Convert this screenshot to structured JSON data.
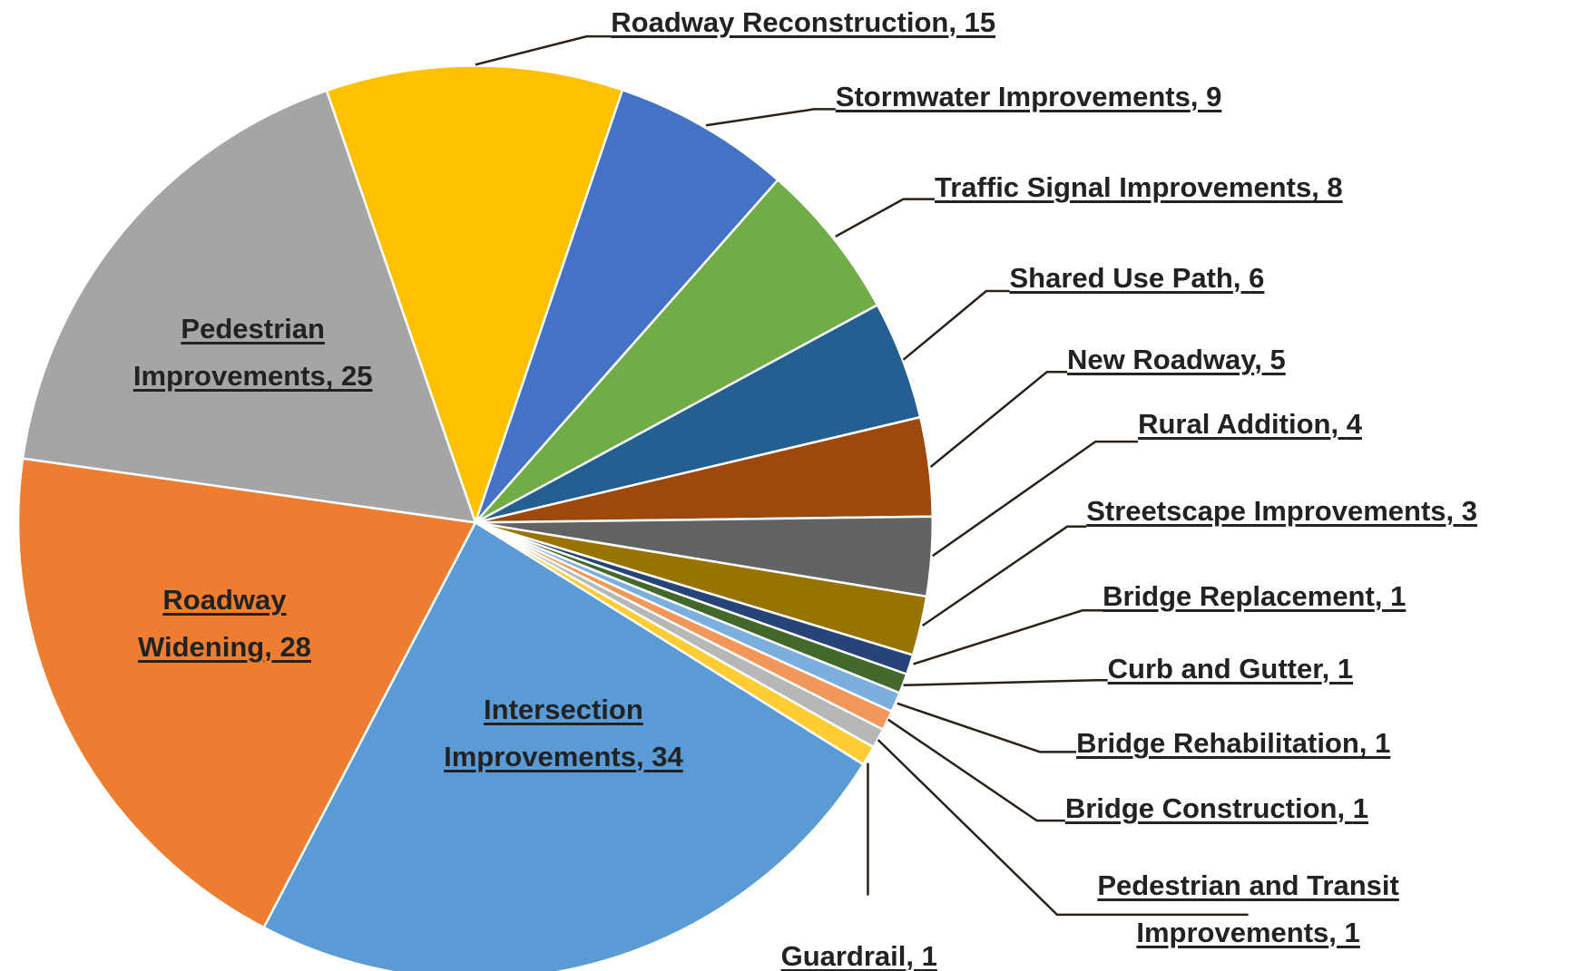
{
  "chart_data": {
    "type": "pie",
    "categories": [
      "Roadway Reconstruction",
      "Stormwater Improvements",
      "Traffic Signal Improvements",
      "Shared Use Path",
      "New Roadway",
      "Rural Addition",
      "Streetscape Improvements",
      "Bridge Replacement",
      "Curb and Gutter",
      "Bridge Rehabilitation",
      "Bridge Construction",
      "Pedestrian and Transit Improvements",
      "Guardrail",
      "Intersection Improvements",
      "Roadway Widening",
      "Pedestrian Improvements"
    ],
    "values": [
      15,
      9,
      8,
      6,
      5,
      4,
      3,
      1,
      1,
      1,
      1,
      1,
      1,
      34,
      28,
      25
    ],
    "colors": [
      "#ffc000",
      "#4472c4",
      "#70ad47",
      "#255e91",
      "#9e480e",
      "#636363",
      "#997300",
      "#264478",
      "#43682b",
      "#7cafdd",
      "#f1975a",
      "#b7b7b7",
      "#ffcd33",
      "#5b9bd5",
      "#ed7d31",
      "#a5a5a5"
    ]
  }
}
